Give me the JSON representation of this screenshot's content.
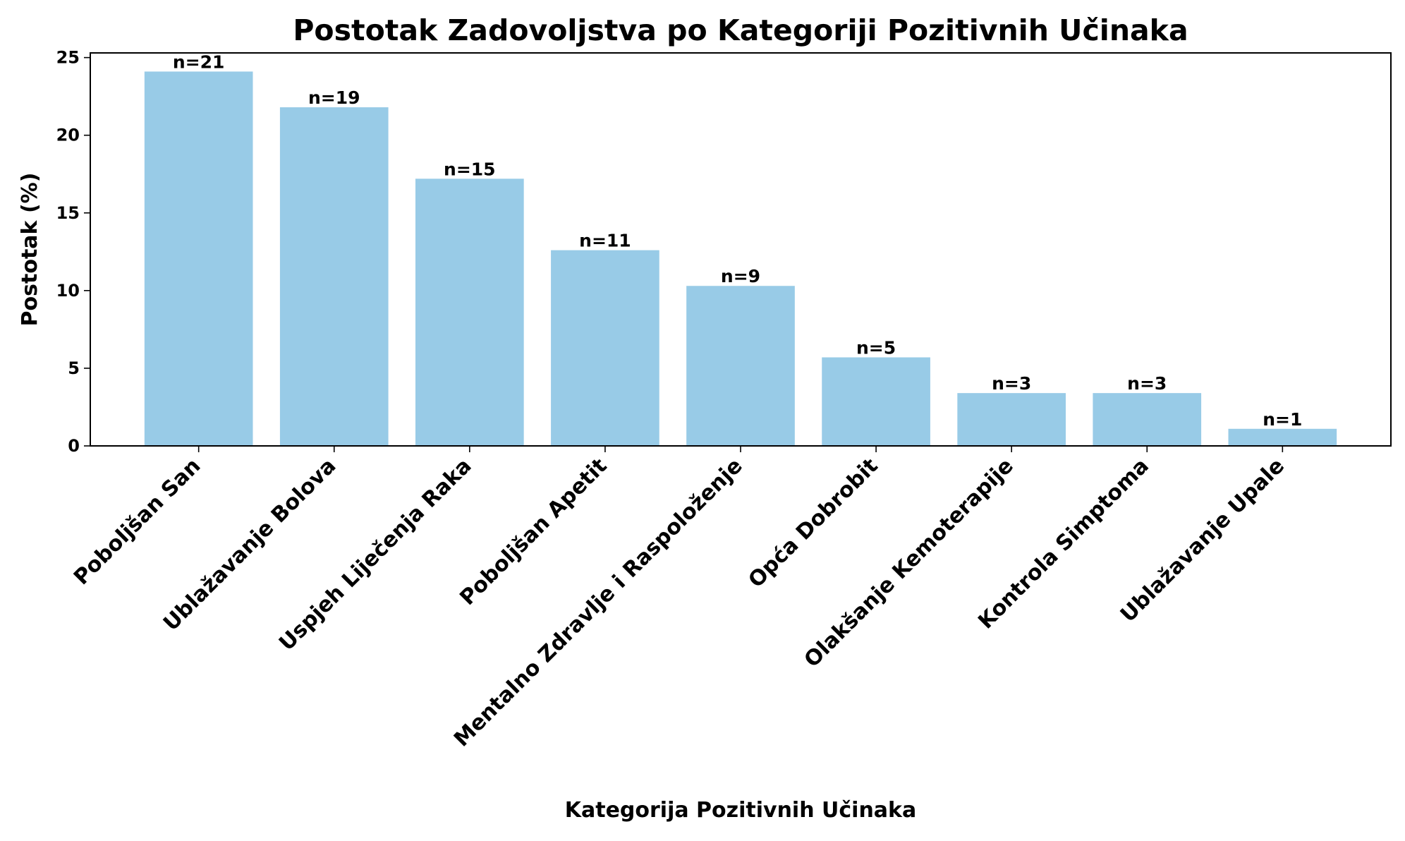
{
  "chart_data": {
    "type": "bar",
    "title": "Postotak Zadovoljstva po Kategoriji Pozitivnih Učinaka",
    "xlabel": "Kategorija Pozitivnih Učinaka",
    "ylabel": "Postotak (%)",
    "categories": [
      "Poboljšan San",
      "Ublažavanje Bolova",
      "Uspjeh Liječenja Raka",
      "Poboljšan Apetit",
      "Mentalno Zdravlje i Raspoloženje",
      "Opća Dobrobit",
      "Olakšanje Kemoterapije",
      "Kontrola Simptoma",
      "Ublažavanje Upale"
    ],
    "values": [
      24.1,
      21.8,
      17.2,
      12.6,
      10.3,
      5.7,
      3.4,
      3.4,
      1.1
    ],
    "data_labels": [
      "n=21",
      "n=19",
      "n=15",
      "n=11",
      "n=9",
      "n=5",
      "n=3",
      "n=3",
      "n=1"
    ],
    "ylim": [
      0,
      25.3
    ],
    "yticks": [
      0,
      5,
      10,
      15,
      20,
      25
    ],
    "grid": false,
    "legend": "none",
    "bar_color": "#98cbe7",
    "axis_color": "#000000"
  }
}
